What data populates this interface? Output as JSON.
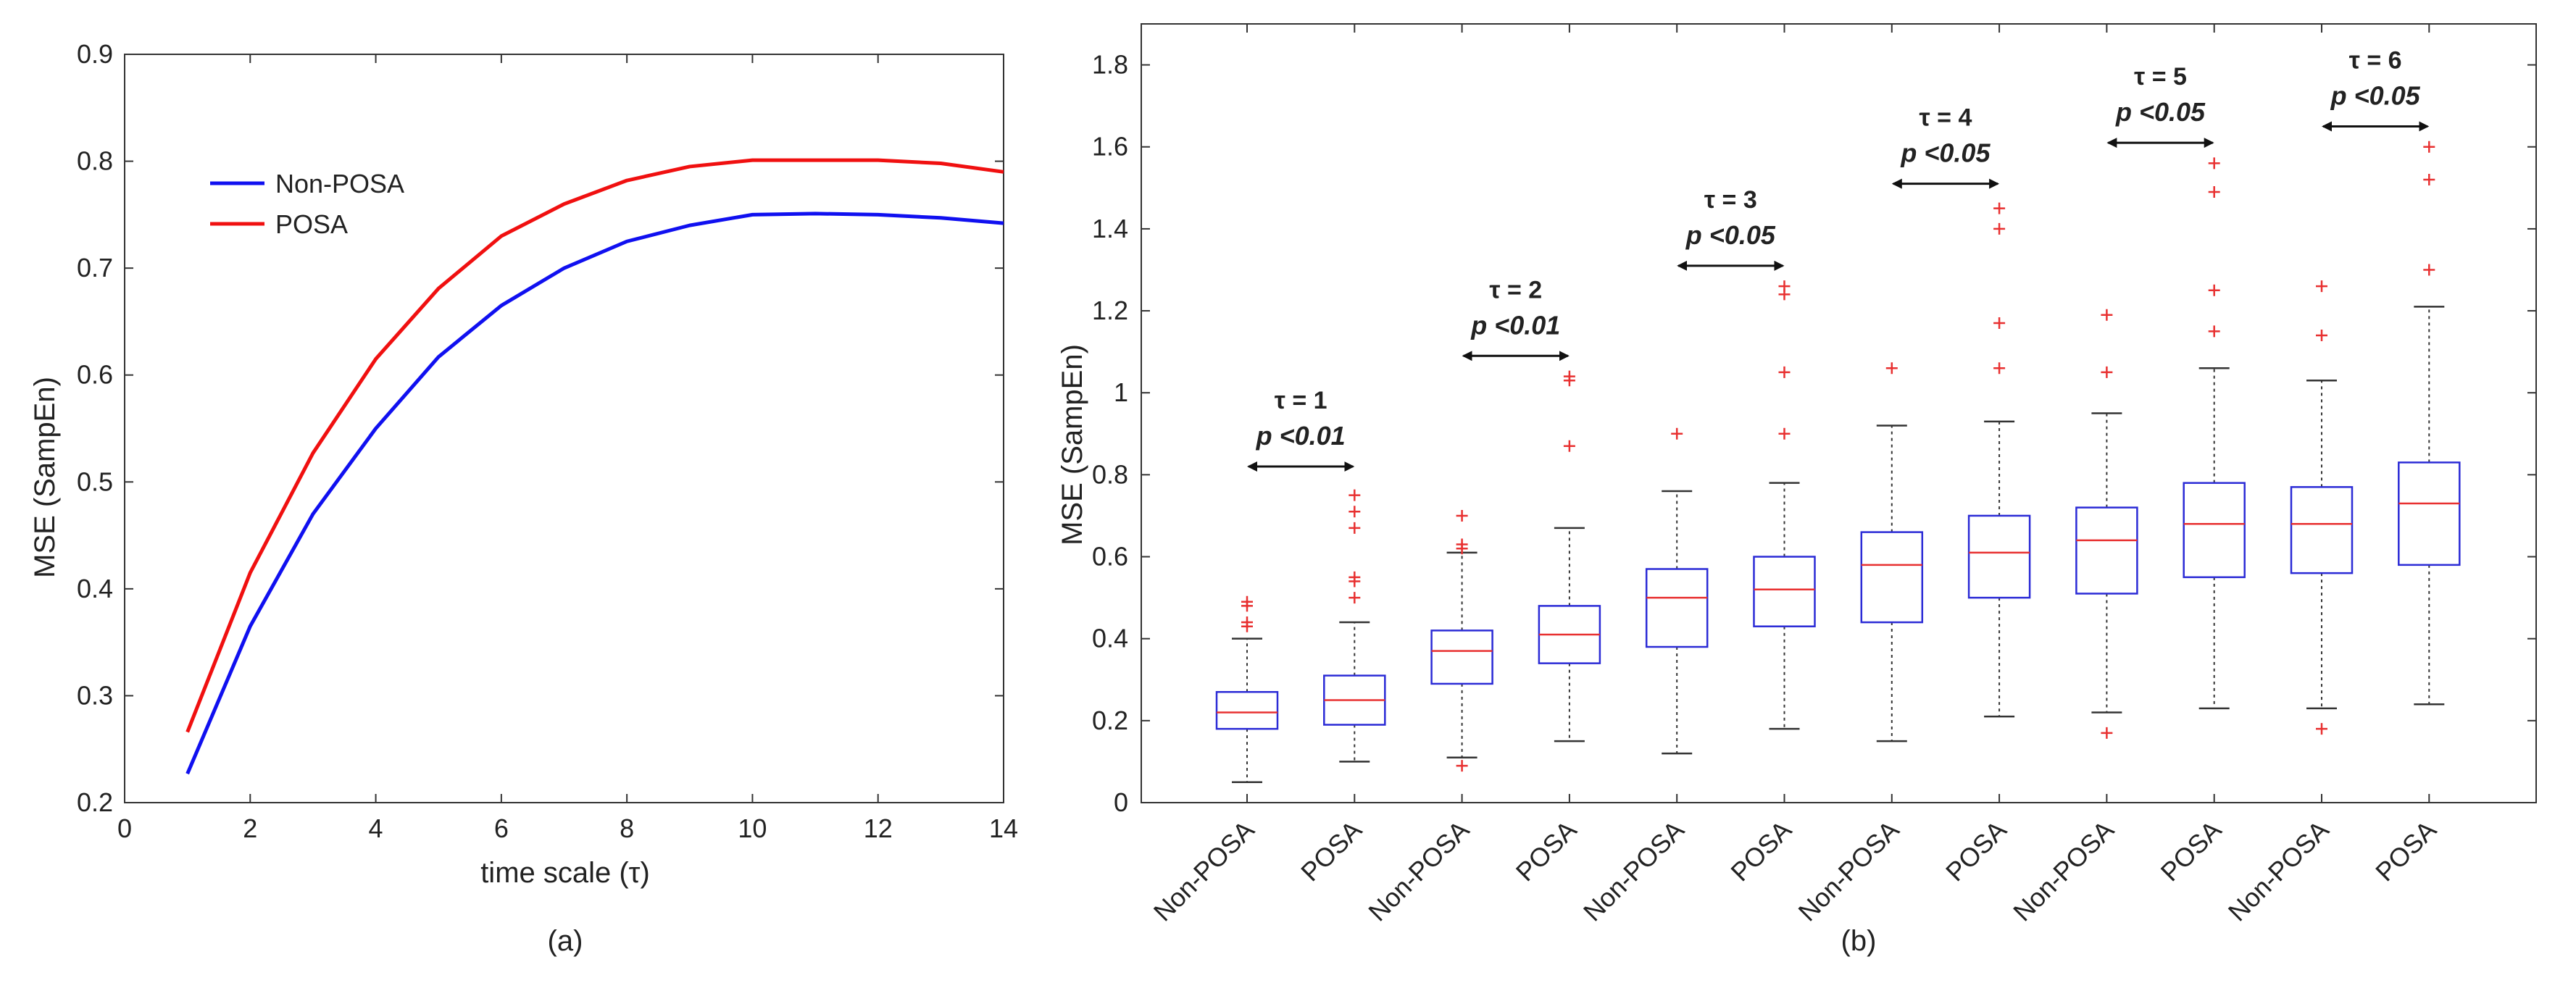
{
  "chart_data": [
    {
      "type": "line",
      "panel_label": "(a)",
      "xlabel": "time scale (τ)",
      "ylabel": "MSE (SampEn)",
      "xlim": [
        0,
        14
      ],
      "ylim": [
        0.2,
        0.9
      ],
      "xticks": [
        "0",
        "2",
        "4",
        "6",
        "8",
        "10",
        "12",
        "14"
      ],
      "yticks": [
        "0.2",
        "0.3",
        "0.4",
        "0.5",
        "0.6",
        "0.7",
        "0.8",
        "0.9"
      ],
      "grid": false,
      "legend_position": "top-left",
      "x": [
        1,
        2,
        3,
        4,
        5,
        6,
        7,
        8,
        9,
        10,
        11,
        12,
        13,
        14
      ],
      "series": [
        {
          "name": "Non-POSA",
          "color": "#1010f0",
          "values": [
            0.227,
            0.365,
            0.47,
            0.55,
            0.617,
            0.665,
            0.7,
            0.725,
            0.74,
            0.75,
            0.751,
            0.75,
            0.747,
            0.742
          ]
        },
        {
          "name": "POSA",
          "color": "#f01010",
          "values": [
            0.266,
            0.415,
            0.527,
            0.615,
            0.681,
            0.73,
            0.76,
            0.782,
            0.795,
            0.801,
            0.801,
            0.801,
            0.798,
            0.79
          ]
        }
      ]
    },
    {
      "type": "box",
      "panel_label": "(b)",
      "ylabel": "MSE (SampEn)",
      "ylim": [
        0,
        1.9
      ],
      "yticks": [
        "0",
        "0.2",
        "0.4",
        "0.6",
        "0.8",
        "1",
        "1.2",
        "1.4",
        "1.6",
        "1.8"
      ],
      "grid": false,
      "colors": {
        "box": "#2b2bd6",
        "median": "#e83030",
        "whisker": "#333333",
        "outlier": "#e83030",
        "arrow": "#111111"
      },
      "categories": [
        "Non-POSA",
        "POSA",
        "Non-POSA",
        "POSA",
        "Non-POSA",
        "POSA",
        "Non-POSA",
        "POSA",
        "Non-POSA",
        "POSA",
        "Non-POSA",
        "POSA"
      ],
      "boxes": [
        {
          "whisker_low": 0.05,
          "q1": 0.18,
          "median": 0.22,
          "q3": 0.27,
          "whisker_high": 0.4,
          "outliers": [
            0.43,
            0.44,
            0.48,
            0.49
          ]
        },
        {
          "whisker_low": 0.1,
          "q1": 0.19,
          "median": 0.25,
          "q3": 0.31,
          "whisker_high": 0.44,
          "outliers": [
            0.5,
            0.54,
            0.55,
            0.67,
            0.71,
            0.75
          ]
        },
        {
          "whisker_low": 0.11,
          "q1": 0.29,
          "median": 0.37,
          "q3": 0.42,
          "whisker_high": 0.61,
          "outliers": [
            0.09,
            0.62,
            0.63,
            0.7
          ]
        },
        {
          "whisker_low": 0.15,
          "q1": 0.34,
          "median": 0.41,
          "q3": 0.48,
          "whisker_high": 0.67,
          "outliers": [
            0.87,
            1.03,
            1.04
          ]
        },
        {
          "whisker_low": 0.12,
          "q1": 0.38,
          "median": 0.5,
          "q3": 0.57,
          "whisker_high": 0.76,
          "outliers": [
            0.9
          ]
        },
        {
          "whisker_low": 0.18,
          "q1": 0.43,
          "median": 0.52,
          "q3": 0.6,
          "whisker_high": 0.78,
          "outliers": [
            0.9,
            1.05,
            1.24,
            1.26
          ]
        },
        {
          "whisker_low": 0.15,
          "q1": 0.44,
          "median": 0.58,
          "q3": 0.66,
          "whisker_high": 0.92,
          "outliers": [
            1.06
          ]
        },
        {
          "whisker_low": 0.21,
          "q1": 0.5,
          "median": 0.61,
          "q3": 0.7,
          "whisker_high": 0.93,
          "outliers": [
            1.06,
            1.17,
            1.4,
            1.45
          ]
        },
        {
          "whisker_low": 0.22,
          "q1": 0.51,
          "median": 0.64,
          "q3": 0.72,
          "whisker_high": 0.95,
          "outliers": [
            0.17,
            1.05,
            1.19
          ]
        },
        {
          "whisker_low": 0.23,
          "q1": 0.55,
          "median": 0.68,
          "q3": 0.78,
          "whisker_high": 1.06,
          "outliers": [
            1.15,
            1.25,
            1.49,
            1.56
          ]
        },
        {
          "whisker_low": 0.23,
          "q1": 0.56,
          "median": 0.68,
          "q3": 0.77,
          "whisker_high": 1.03,
          "outliers": [
            0.18,
            1.14,
            1.26
          ]
        },
        {
          "whisker_low": 0.24,
          "q1": 0.58,
          "median": 0.73,
          "q3": 0.83,
          "whisker_high": 1.21,
          "outliers": [
            1.3,
            1.52,
            1.6
          ]
        }
      ],
      "annotations": [
        {
          "tau": "τ = 1",
          "p": "p <0.01",
          "from": 1,
          "to": 2,
          "arrow_y": 0.82
        },
        {
          "tau": "τ = 2",
          "p": "p <0.01",
          "from": 3,
          "to": 4,
          "arrow_y": 1.09
        },
        {
          "tau": "τ = 3",
          "p": "p <0.05",
          "from": 5,
          "to": 6,
          "arrow_y": 1.31
        },
        {
          "tau": "τ = 4",
          "p": "p <0.05",
          "from": 7,
          "to": 8,
          "arrow_y": 1.51
        },
        {
          "tau": "τ = 5",
          "p": "p <0.05",
          "from": 9,
          "to": 10,
          "arrow_y": 1.61
        },
        {
          "tau": "τ = 6",
          "p": "p <0.05",
          "from": 11,
          "to": 12,
          "arrow_y": 1.65
        }
      ]
    }
  ]
}
